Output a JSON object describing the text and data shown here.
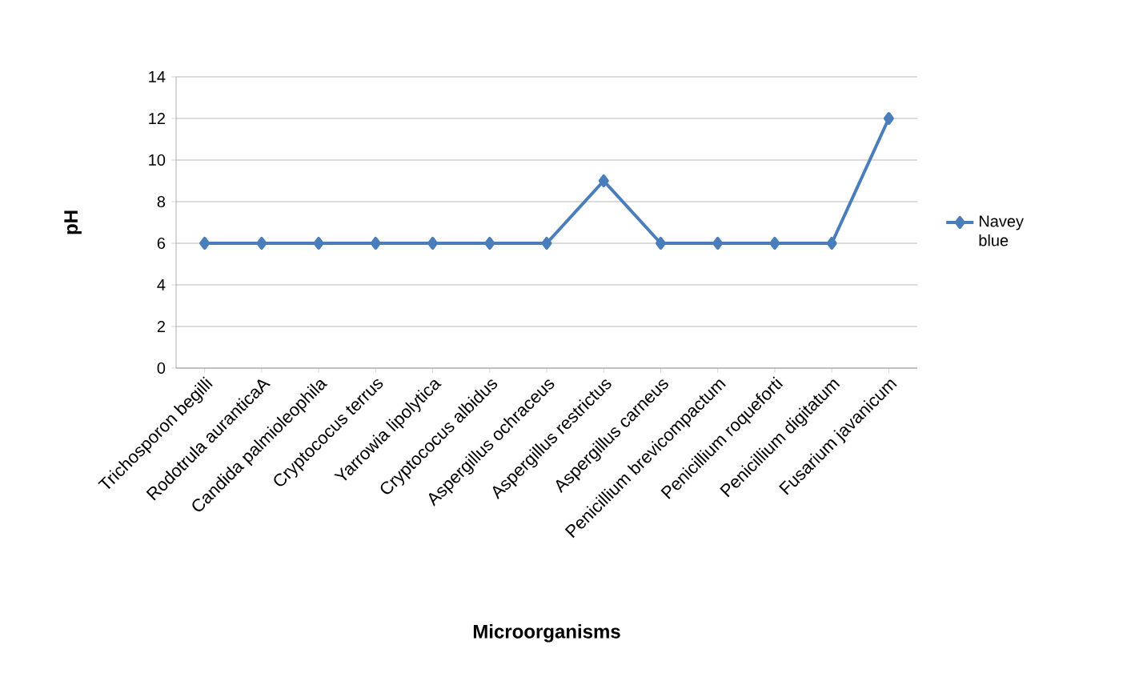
{
  "chart_data": {
    "type": "line",
    "xlabel": "Microorganisms",
    "ylabel": "pH",
    "categories": [
      "Trichosporon begilli",
      "Rodotrula  auranticaA",
      "Candida palmioleophila",
      "Cryptococus terrus",
      "Yarrowia lipolytica",
      "Cryptococus albidus",
      "Aspergillus  ochraceus",
      "Aspergillus restrictus",
      "Aspergillus carneus",
      "Penicillium  brevicompactum",
      "Penicillium roqueforti",
      "Penicillium digitatum",
      "Fusarium javanicum"
    ],
    "series": [
      {
        "name": "Navey blue",
        "color": "#4a7ebb",
        "values": [
          6,
          6,
          6,
          6,
          6,
          6,
          6,
          9,
          6,
          6,
          6,
          6,
          12
        ]
      }
    ],
    "ylim": [
      0,
      14
    ],
    "yticks": [
      0,
      2,
      4,
      6,
      8,
      10,
      12,
      14
    ],
    "grid": "y",
    "legend": "right",
    "marker": "diamond"
  }
}
